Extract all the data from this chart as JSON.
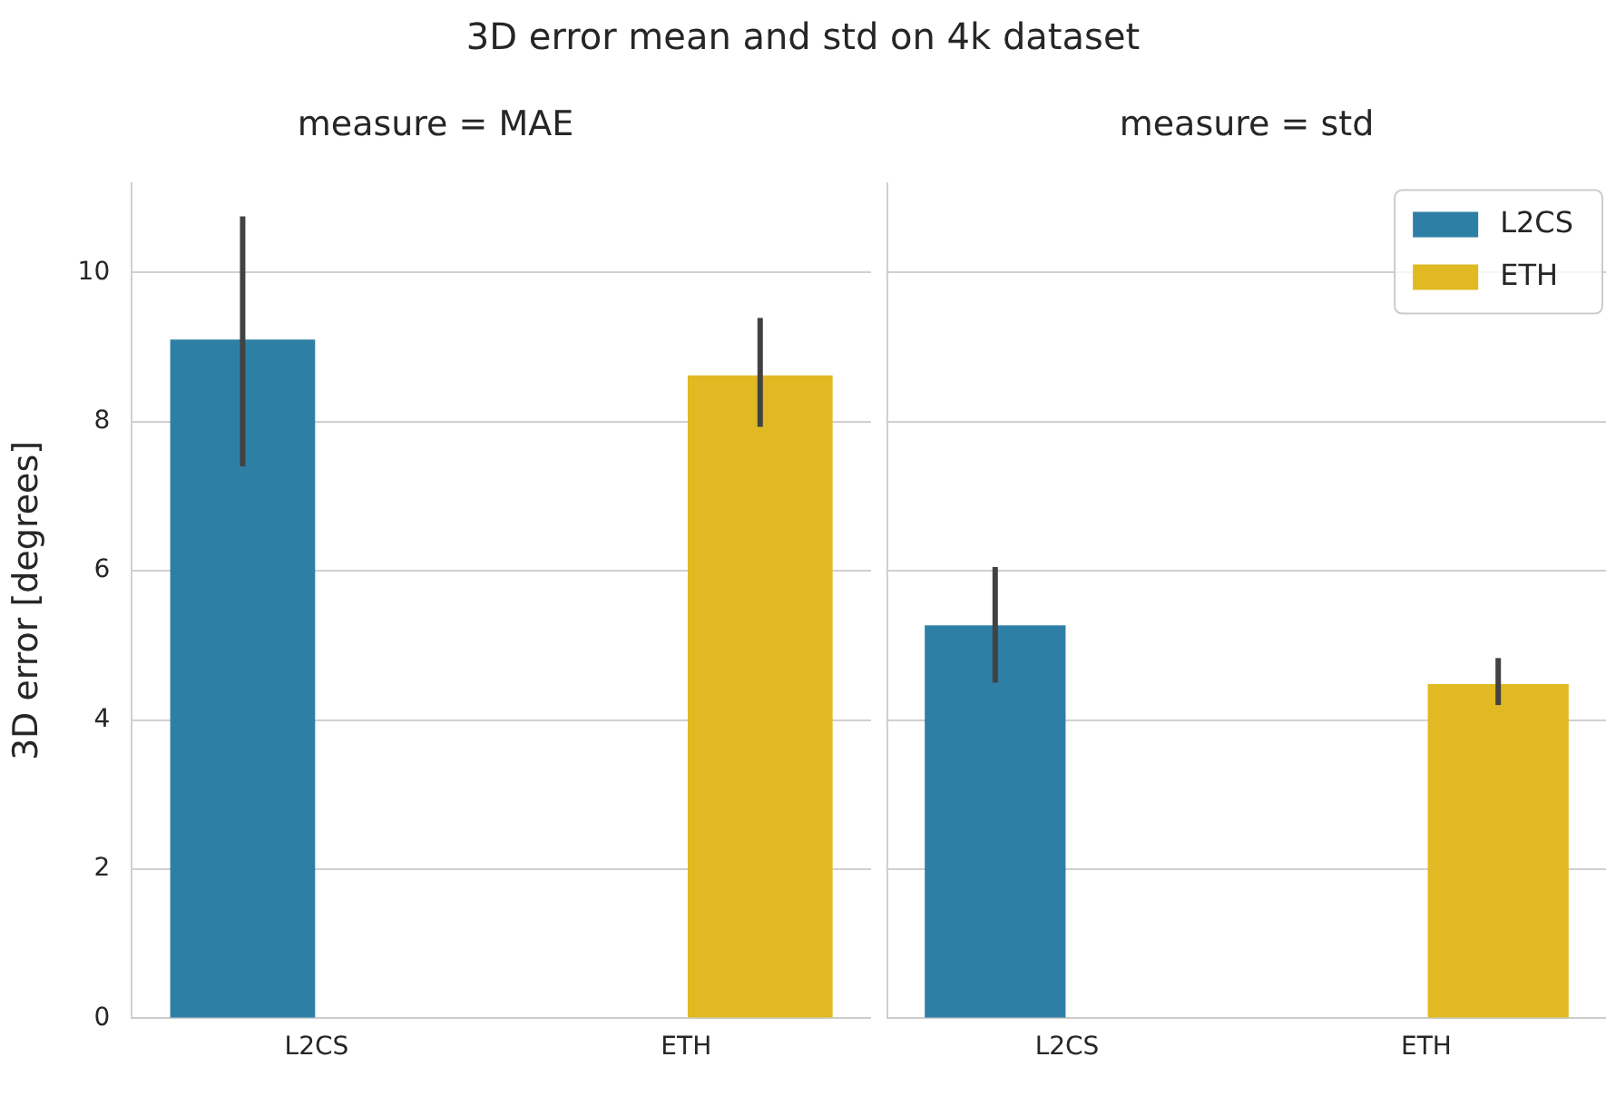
{
  "chart_data": [
    {
      "type": "bar",
      "title": "measure = MAE",
      "annotations": [
        "3D error mean and std on 4k dataset"
      ],
      "ylabel": "3D error [degrees]",
      "categories": [
        "L2CS",
        "ETH"
      ],
      "series": [
        {
          "color": "#2e7fa6",
          "values": [
            9.1,
            null
          ],
          "errors": [
            [
              7.4,
              10.75
            ],
            null
          ]
        },
        {
          "color": "#e0b923",
          "values": [
            null,
            8.62
          ],
          "errors": [
            null,
            [
              7.93,
              9.39
            ]
          ]
        }
      ],
      "ylim": [
        0,
        11.2
      ],
      "yticks": [
        0,
        2,
        4,
        6,
        8,
        10
      ],
      "grid": "y",
      "legend": false
    },
    {
      "type": "bar",
      "title": "measure = std",
      "categories": [
        "L2CS",
        "ETH"
      ],
      "series": [
        {
          "name": "L2CS",
          "color": "#2e7fa6",
          "values": [
            5.27,
            null
          ],
          "errors": [
            [
              4.5,
              6.05
            ],
            null
          ]
        },
        {
          "name": "ETH",
          "color": "#e0b923",
          "values": [
            null,
            4.48
          ],
          "errors": [
            null,
            [
              4.2,
              4.83
            ]
          ]
        }
      ],
      "ylim": [
        0,
        11.2
      ],
      "yticks": [
        0,
        2,
        4,
        6,
        8,
        10
      ],
      "grid": "y",
      "legend": "top right",
      "tick_labels": "x"
    }
  ]
}
